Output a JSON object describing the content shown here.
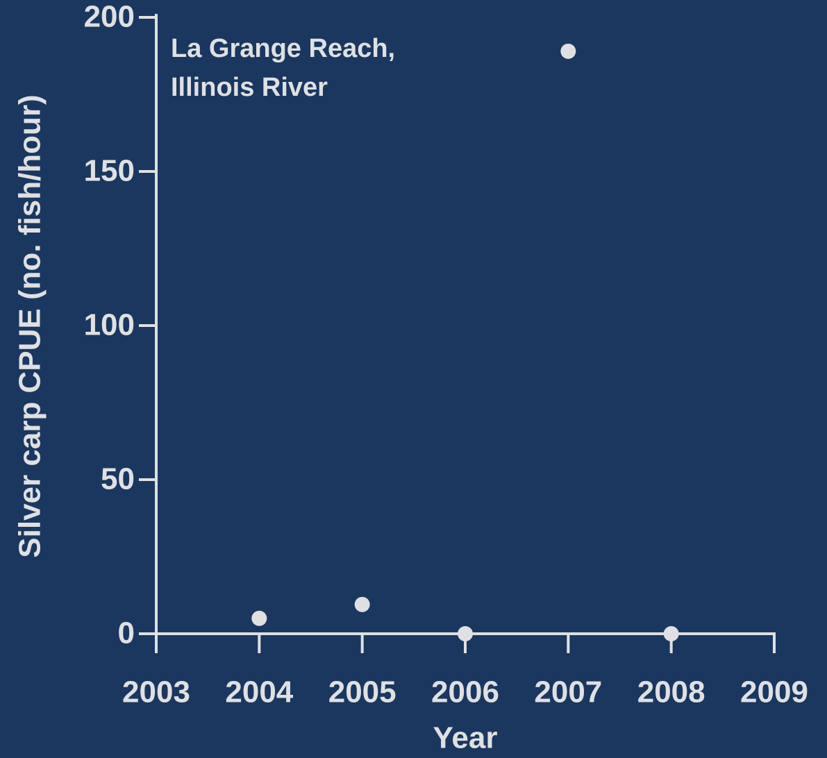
{
  "chart_data": {
    "type": "scatter",
    "ylabel": "Silver carp CPUE (no. fish/hour)",
    "xlabel": "Year",
    "annotation": [
      "La Grange Reach,",
      "Illinois River"
    ],
    "x": [
      2004,
      2005,
      2006,
      2007,
      2008
    ],
    "series": [
      {
        "color": "#e0e0e2",
        "values": [
          5,
          9.5,
          0,
          189,
          0
        ]
      }
    ],
    "xlim": [
      2003,
      2009
    ],
    "xticks": [
      2003,
      2004,
      2005,
      2006,
      2007,
      2008,
      2009
    ],
    "ylim": [
      0,
      200
    ],
    "yticks": [
      0,
      50,
      100,
      150,
      200
    ]
  }
}
